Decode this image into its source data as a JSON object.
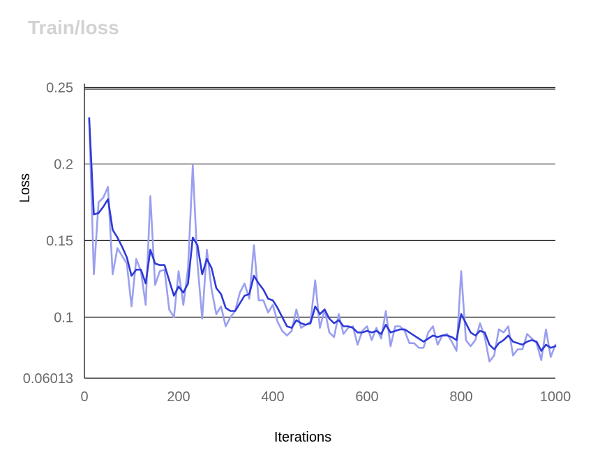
{
  "chart_data": {
    "type": "line",
    "title": "Train/loss",
    "xlabel": "Iterations",
    "ylabel": "Loss",
    "xlim": [
      0,
      1000
    ],
    "ylim": [
      0.06013,
      0.2525
    ],
    "x_ticks": [
      0,
      200,
      400,
      600,
      800,
      1000
    ],
    "y_ticks": [
      0.06013,
      0.1,
      0.15,
      0.2,
      0.25
    ],
    "y_tick_labels": [
      "0.06013",
      "0.1",
      "0.15",
      "0.2",
      "0.25"
    ],
    "grid": "horizontal",
    "series": [
      {
        "role": "raw",
        "color": "#9a9fef",
        "x": [
          10,
          20,
          30,
          40,
          50,
          60,
          70,
          80,
          90,
          100,
          110,
          120,
          130,
          140,
          150,
          160,
          170,
          180,
          190,
          200,
          210,
          220,
          230,
          240,
          250,
          260,
          270,
          280,
          290,
          300,
          310,
          320,
          330,
          340,
          350,
          360,
          370,
          380,
          390,
          400,
          410,
          420,
          430,
          440,
          450,
          460,
          470,
          480,
          490,
          500,
          510,
          520,
          530,
          540,
          550,
          560,
          570,
          580,
          590,
          600,
          610,
          620,
          630,
          640,
          650,
          660,
          670,
          680,
          690,
          700,
          710,
          720,
          730,
          740,
          750,
          760,
          770,
          780,
          790,
          800,
          810,
          820,
          830,
          840,
          850,
          860,
          870,
          880,
          890,
          900,
          910,
          920,
          930,
          940,
          950,
          960,
          970,
          980,
          990,
          1000
        ],
        "values": [
          0.23,
          0.128,
          0.175,
          0.178,
          0.185,
          0.128,
          0.145,
          0.14,
          0.135,
          0.107,
          0.138,
          0.13,
          0.108,
          0.179,
          0.121,
          0.13,
          0.131,
          0.105,
          0.1,
          0.13,
          0.108,
          0.132,
          0.199,
          0.135,
          0.099,
          0.144,
          0.118,
          0.102,
          0.107,
          0.094,
          0.1,
          0.104,
          0.116,
          0.122,
          0.112,
          0.147,
          0.111,
          0.111,
          0.103,
          0.108,
          0.097,
          0.091,
          0.088,
          0.091,
          0.105,
          0.093,
          0.095,
          0.097,
          0.124,
          0.093,
          0.105,
          0.09,
          0.087,
          0.102,
          0.089,
          0.093,
          0.094,
          0.082,
          0.091,
          0.094,
          0.085,
          0.093,
          0.086,
          0.104,
          0.081,
          0.094,
          0.094,
          0.091,
          0.083,
          0.083,
          0.08,
          0.08,
          0.09,
          0.094,
          0.082,
          0.088,
          0.089,
          0.084,
          0.078,
          0.13,
          0.085,
          0.081,
          0.085,
          0.096,
          0.087,
          0.071,
          0.075,
          0.092,
          0.09,
          0.094,
          0.075,
          0.079,
          0.079,
          0.089,
          0.086,
          0.083,
          0.072,
          0.092,
          0.074,
          0.082
        ]
      },
      {
        "role": "smoothed",
        "color": "#2e39d6",
        "x": [
          10,
          20,
          30,
          40,
          50,
          60,
          70,
          80,
          90,
          100,
          110,
          120,
          130,
          140,
          150,
          160,
          170,
          180,
          190,
          200,
          210,
          220,
          230,
          240,
          250,
          260,
          270,
          280,
          290,
          300,
          310,
          320,
          330,
          340,
          350,
          360,
          370,
          380,
          390,
          400,
          410,
          420,
          430,
          440,
          450,
          460,
          470,
          480,
          490,
          500,
          510,
          520,
          530,
          540,
          550,
          560,
          570,
          580,
          590,
          600,
          610,
          620,
          630,
          640,
          650,
          660,
          670,
          680,
          690,
          700,
          710,
          720,
          730,
          740,
          750,
          760,
          770,
          780,
          790,
          800,
          810,
          820,
          830,
          840,
          850,
          860,
          870,
          880,
          890,
          900,
          910,
          920,
          930,
          940,
          950,
          960,
          970,
          980,
          990,
          1000
        ],
        "values": [
          0.23,
          0.167,
          0.168,
          0.172,
          0.177,
          0.157,
          0.152,
          0.146,
          0.139,
          0.127,
          0.131,
          0.131,
          0.122,
          0.144,
          0.135,
          0.134,
          0.134,
          0.124,
          0.114,
          0.12,
          0.116,
          0.122,
          0.152,
          0.147,
          0.128,
          0.138,
          0.132,
          0.119,
          0.115,
          0.106,
          0.104,
          0.104,
          0.109,
          0.114,
          0.115,
          0.127,
          0.122,
          0.118,
          0.112,
          0.111,
          0.106,
          0.1,
          0.094,
          0.093,
          0.098,
          0.096,
          0.095,
          0.096,
          0.107,
          0.102,
          0.105,
          0.099,
          0.096,
          0.098,
          0.094,
          0.094,
          0.093,
          0.09,
          0.09,
          0.091,
          0.09,
          0.091,
          0.089,
          0.095,
          0.09,
          0.091,
          0.092,
          0.092,
          0.09,
          0.088,
          0.086,
          0.084,
          0.086,
          0.088,
          0.087,
          0.088,
          0.088,
          0.087,
          0.085,
          0.102,
          0.096,
          0.09,
          0.088,
          0.091,
          0.09,
          0.082,
          0.079,
          0.083,
          0.085,
          0.088,
          0.084,
          0.083,
          0.082,
          0.084,
          0.085,
          0.084,
          0.078,
          0.082,
          0.08,
          0.081
        ]
      }
    ]
  }
}
